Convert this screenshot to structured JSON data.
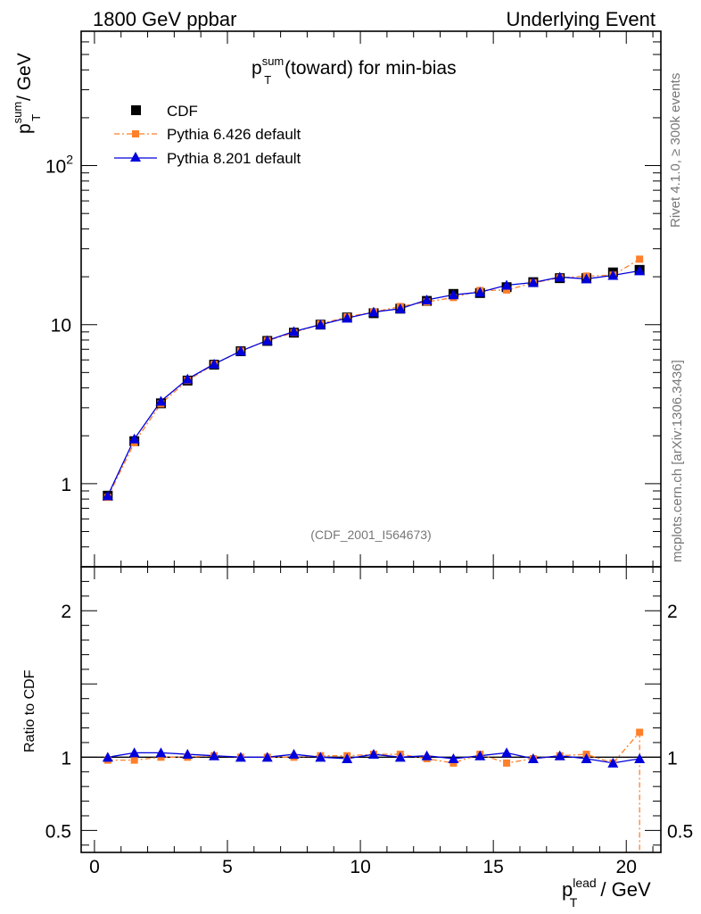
{
  "header": {
    "left": "1800 GeV ppbar",
    "right": "Underlying Event"
  },
  "side": {
    "rivet": "Rivet 4.1.0, ≥ 300k events",
    "mcplots": "mcplots.cern.ch [arXiv:1306.3436]"
  },
  "chart_data": [
    {
      "type": "line",
      "scale": "log",
      "title_main": "p",
      "title_sup": "sum",
      "title_sub": "T",
      "title_rest": " (toward) for min-bias",
      "ylabel_main": "p",
      "ylabel_sup": "sum",
      "ylabel_sub": "T",
      "ylabel_rest": " / GeV",
      "ylim": [
        0.3,
        700
      ],
      "yticks": [
        {
          "value": 1,
          "label": "1"
        },
        {
          "value": 10,
          "label": "10"
        },
        {
          "value": 100,
          "label_base": "10",
          "label_exp": "2"
        }
      ],
      "watermark": "(CDF_2001_I564673)",
      "x": [
        0.5,
        1.5,
        2.5,
        3.5,
        4.5,
        5.5,
        6.5,
        7.5,
        8.5,
        9.5,
        10.5,
        11.5,
        12.5,
        13.5,
        14.5,
        15.5,
        16.5,
        17.5,
        18.5,
        19.5,
        20.5
      ],
      "series": [
        {
          "name": "CDF",
          "color": "#000000",
          "marker": "square",
          "values": [
            0.84,
            1.85,
            3.2,
            4.45,
            5.6,
            6.8,
            7.9,
            8.9,
            10.0,
            11.1,
            11.8,
            12.6,
            14.1,
            15.6,
            15.8,
            17.2,
            18.5,
            19.6,
            19.6,
            21.3,
            22.1
          ]
        },
        {
          "name": "Pythia 6.426 default",
          "color": "#ff7f2a",
          "marker": "square-small",
          "dash": "6,3,2,3",
          "values": [
            0.82,
            1.81,
            3.18,
            4.46,
            5.62,
            6.82,
            7.93,
            8.9,
            10.1,
            11.2,
            12.0,
            13.0,
            13.9,
            14.8,
            16.4,
            16.5,
            18.3,
            19.7,
            20.2,
            20.5,
            25.8
          ]
        },
        {
          "name": "Pythia 8.201 default",
          "color": "#0000dd",
          "marker": "triangle",
          "values": [
            0.84,
            1.91,
            3.3,
            4.55,
            5.65,
            6.82,
            7.95,
            9.05,
            10.0,
            11.0,
            12.0,
            12.6,
            14.3,
            15.4,
            16.0,
            17.7,
            18.4,
            19.9,
            19.4,
            20.4,
            21.8
          ]
        }
      ]
    },
    {
      "type": "line",
      "ylabel": "Ratio to CDF",
      "xlabel_main": "p",
      "xlabel_sup": "lead",
      "xlabel_sub": "T",
      "xlabel_rest": " / GeV",
      "xlim": [
        -0.5,
        21.3
      ],
      "ylim": [
        0.35,
        2.3
      ],
      "xticks": [
        {
          "value": 0,
          "label": "0"
        },
        {
          "value": 5,
          "label": "5"
        },
        {
          "value": 10,
          "label": "10"
        },
        {
          "value": 15,
          "label": "15"
        },
        {
          "value": 20,
          "label": "20"
        }
      ],
      "yticks": [
        {
          "value": 0.5,
          "label": "0.5"
        },
        {
          "value": 1,
          "label": "1"
        },
        {
          "value": 2,
          "label": "2"
        }
      ],
      "x": [
        0.5,
        1.5,
        2.5,
        3.5,
        4.5,
        5.5,
        6.5,
        7.5,
        8.5,
        9.5,
        10.5,
        11.5,
        12.5,
        13.5,
        14.5,
        15.5,
        16.5,
        17.5,
        18.5,
        19.5,
        20.5
      ],
      "series": [
        {
          "name": "Pythia 6.426 default",
          "color": "#ff7f2a",
          "values": [
            0.98,
            0.98,
            1.0,
            1.0,
            1.01,
            1.0,
            1.0,
            1.0,
            1.01,
            1.01,
            1.02,
            1.02,
            0.99,
            0.96,
            1.02,
            0.96,
            0.99,
            1.01,
            1.02,
            0.96,
            1.17
          ],
          "last_drop_to": 0.35
        },
        {
          "name": "Pythia 8.201 default",
          "color": "#0000dd",
          "values": [
            1.0,
            1.03,
            1.03,
            1.02,
            1.01,
            1.0,
            1.0,
            1.02,
            1.0,
            0.99,
            1.02,
            1.0,
            1.01,
            0.99,
            1.01,
            1.03,
            0.99,
            1.01,
            0.99,
            0.96,
            0.99
          ]
        }
      ]
    }
  ]
}
